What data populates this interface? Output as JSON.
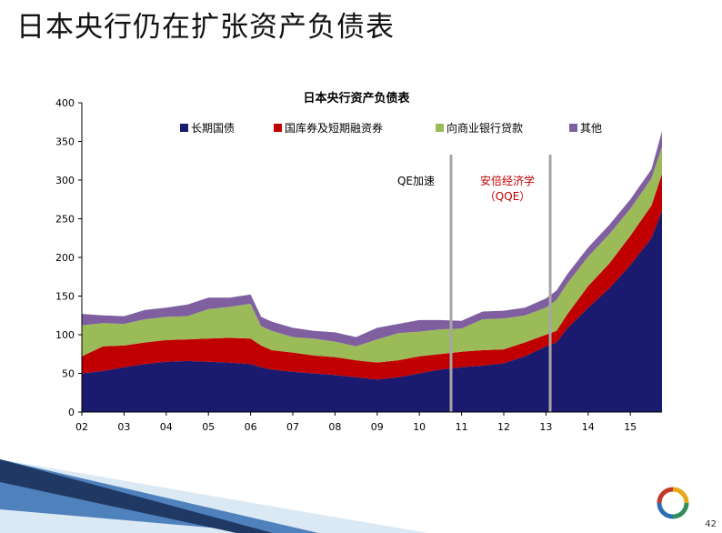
{
  "slide": {
    "title": "日本央行仍在扩张资产负债表",
    "page_number": "42"
  },
  "colors": {
    "long_term_jgb": "#1a1a6e",
    "tbills_cp": "#c00000",
    "loans": "#9bbb59",
    "other": "#7f5fa0",
    "vline": "#a6a6a6",
    "annot_abe": "#c00000"
  },
  "chart_data": {
    "type": "area",
    "stacked": true,
    "title": "日本央行资产负债表",
    "x_tick_labels": [
      "02",
      "03",
      "04",
      "05",
      "06",
      "07",
      "08",
      "09",
      "10",
      "11",
      "12",
      "13",
      "14",
      "15"
    ],
    "x": [
      2002.0,
      2002.5,
      2003.0,
      2003.5,
      2004.0,
      2004.5,
      2005.0,
      2005.5,
      2006.0,
      2006.25,
      2006.5,
      2007.0,
      2007.5,
      2008.0,
      2008.5,
      2009.0,
      2009.5,
      2010.0,
      2010.5,
      2011.0,
      2011.5,
      2012.0,
      2012.5,
      2013.0,
      2013.25,
      2013.5,
      2014.0,
      2014.5,
      2015.0,
      2015.5,
      2015.75
    ],
    "xlim": [
      2002.0,
      2015.75
    ],
    "ylim": [
      0,
      400
    ],
    "y_ticks": [
      0,
      50,
      100,
      150,
      200,
      250,
      300,
      350,
      400
    ],
    "grid": false,
    "legend_position": "top",
    "series": [
      {
        "name": "长期国债",
        "color_key": "long_term_jgb",
        "values": [
          50,
          53,
          58,
          62,
          65,
          66,
          65,
          64,
          62,
          58,
          55,
          52,
          50,
          48,
          45,
          42,
          45,
          50,
          55,
          58,
          60,
          63,
          72,
          85,
          90,
          108,
          135,
          160,
          190,
          225,
          260
        ]
      },
      {
        "name": "国库券及短期融资券",
        "color_key": "tbills_cp",
        "values": [
          22,
          32,
          28,
          28,
          28,
          28,
          30,
          32,
          33,
          28,
          25,
          25,
          23,
          23,
          22,
          22,
          22,
          22,
          20,
          20,
          20,
          18,
          18,
          15,
          15,
          18,
          28,
          32,
          38,
          42,
          48
        ]
      },
      {
        "name": "向商业银行贷款",
        "color_key": "loans",
        "values": [
          40,
          30,
          28,
          30,
          30,
          30,
          38,
          40,
          45,
          25,
          25,
          20,
          22,
          20,
          18,
          30,
          35,
          32,
          32,
          30,
          40,
          40,
          35,
          35,
          40,
          40,
          38,
          38,
          35,
          35,
          35
        ]
      },
      {
        "name": "其他",
        "color_key": "other",
        "values": [
          15,
          10,
          10,
          12,
          12,
          15,
          15,
          12,
          12,
          12,
          12,
          12,
          10,
          12,
          12,
          15,
          12,
          15,
          12,
          10,
          10,
          10,
          10,
          12,
          12,
          12,
          12,
          12,
          12,
          12,
          20
        ]
      }
    ],
    "vertical_lines": [
      {
        "x": 2010.75,
        "label": "QE加速"
      },
      {
        "x": 2013.1,
        "label": "安倍经济学\n（QQE）"
      }
    ]
  }
}
